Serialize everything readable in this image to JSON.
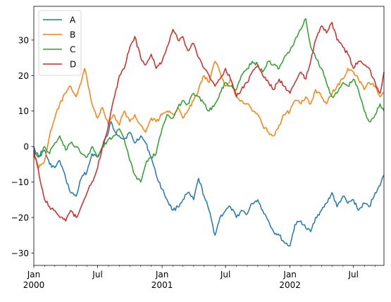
{
  "chart_data": {
    "type": "line",
    "title": "",
    "xlabel": "",
    "ylabel": "",
    "x_range": [
      "2000-01-01",
      "2002-09-26"
    ],
    "ylim": [
      -33.5,
      39.5
    ],
    "yticks": [
      -30,
      -20,
      -10,
      0,
      10,
      20,
      30
    ],
    "xticks_major": [
      {
        "date": "2000-01-01",
        "label": "Jan",
        "sublabel": "2000"
      },
      {
        "date": "2000-07-01",
        "label": "Jul",
        "sublabel": ""
      },
      {
        "date": "2001-01-01",
        "label": "Jan",
        "sublabel": "2001"
      },
      {
        "date": "2001-07-01",
        "label": "Jul",
        "sublabel": ""
      },
      {
        "date": "2002-01-01",
        "label": "Jan",
        "sublabel": "2002"
      },
      {
        "date": "2002-07-01",
        "label": "Jul",
        "sublabel": ""
      }
    ],
    "xticks_minor_monthly": true,
    "grid": false,
    "legend_position": "top-left",
    "series": [
      {
        "name": "A",
        "color": "#1f77b4",
        "points": [
          [
            "2000-01-01",
            0
          ],
          [
            "2000-01-15",
            -3
          ],
          [
            "2000-02-01",
            -1
          ],
          [
            "2000-02-15",
            -5
          ],
          [
            "2000-03-01",
            -6
          ],
          [
            "2000-03-15",
            -4
          ],
          [
            "2000-04-01",
            -9
          ],
          [
            "2000-04-15",
            -13
          ],
          [
            "2000-05-01",
            -14
          ],
          [
            "2000-05-15",
            -9
          ],
          [
            "2000-06-01",
            -7
          ],
          [
            "2000-06-15",
            -2
          ],
          [
            "2000-07-01",
            -3
          ],
          [
            "2000-07-15",
            0
          ],
          [
            "2000-08-01",
            4
          ],
          [
            "2000-08-08",
            7
          ],
          [
            "2000-08-15",
            5
          ],
          [
            "2000-09-01",
            3
          ],
          [
            "2000-09-15",
            2
          ],
          [
            "2000-10-01",
            4
          ],
          [
            "2000-10-15",
            1
          ],
          [
            "2000-11-01",
            3
          ],
          [
            "2000-11-15",
            1
          ],
          [
            "2000-12-01",
            -3
          ],
          [
            "2000-12-15",
            -8
          ],
          [
            "2001-01-01",
            -12
          ],
          [
            "2001-01-15",
            -15
          ],
          [
            "2001-02-01",
            -18
          ],
          [
            "2001-02-15",
            -17
          ],
          [
            "2001-03-01",
            -15
          ],
          [
            "2001-03-15",
            -13
          ],
          [
            "2001-04-01",
            -15
          ],
          [
            "2001-04-15",
            -9
          ],
          [
            "2001-05-01",
            -14
          ],
          [
            "2001-05-15",
            -18
          ],
          [
            "2001-06-01",
            -25
          ],
          [
            "2001-06-15",
            -20
          ],
          [
            "2001-07-01",
            -18
          ],
          [
            "2001-07-15",
            -17
          ],
          [
            "2001-08-01",
            -20
          ],
          [
            "2001-08-15",
            -18
          ],
          [
            "2001-09-01",
            -19
          ],
          [
            "2001-09-15",
            -16
          ],
          [
            "2001-10-01",
            -15
          ],
          [
            "2001-10-15",
            -18
          ],
          [
            "2001-11-01",
            -21
          ],
          [
            "2001-11-15",
            -24
          ],
          [
            "2001-12-01",
            -25
          ],
          [
            "2001-12-15",
            -27
          ],
          [
            "2002-01-01",
            -28
          ],
          [
            "2002-01-15",
            -22
          ],
          [
            "2002-02-01",
            -21
          ],
          [
            "2002-02-15",
            -23
          ],
          [
            "2002-03-01",
            -24
          ],
          [
            "2002-03-15",
            -20
          ],
          [
            "2002-04-01",
            -18
          ],
          [
            "2002-04-15",
            -16
          ],
          [
            "2002-05-01",
            -13
          ],
          [
            "2002-05-15",
            -17
          ],
          [
            "2002-06-01",
            -14
          ],
          [
            "2002-06-15",
            -16
          ],
          [
            "2002-07-01",
            -15
          ],
          [
            "2002-07-15",
            -18
          ],
          [
            "2002-08-01",
            -16
          ],
          [
            "2002-08-15",
            -17
          ],
          [
            "2002-09-01",
            -13
          ],
          [
            "2002-09-15",
            -11
          ],
          [
            "2002-09-26",
            -8
          ]
        ]
      },
      {
        "name": "B",
        "color": "#ff7f0e",
        "points": [
          [
            "2000-01-01",
            -2
          ],
          [
            "2000-01-15",
            -6
          ],
          [
            "2000-02-01",
            -4
          ],
          [
            "2000-02-15",
            3
          ],
          [
            "2000-03-01",
            8
          ],
          [
            "2000-03-15",
            12
          ],
          [
            "2000-04-01",
            15
          ],
          [
            "2000-04-15",
            17
          ],
          [
            "2000-05-01",
            14
          ],
          [
            "2000-05-15",
            18
          ],
          [
            "2000-05-25",
            22
          ],
          [
            "2000-06-01",
            19
          ],
          [
            "2000-06-15",
            12
          ],
          [
            "2000-07-01",
            8
          ],
          [
            "2000-07-15",
            11
          ],
          [
            "2000-08-01",
            6
          ],
          [
            "2000-08-15",
            9
          ],
          [
            "2000-09-01",
            6
          ],
          [
            "2000-09-15",
            10
          ],
          [
            "2000-10-01",
            7
          ],
          [
            "2000-10-15",
            9
          ],
          [
            "2000-11-01",
            6
          ],
          [
            "2000-11-15",
            4
          ],
          [
            "2000-12-01",
            8
          ],
          [
            "2000-12-15",
            7
          ],
          [
            "2001-01-01",
            9
          ],
          [
            "2001-01-15",
            10
          ],
          [
            "2001-02-01",
            9
          ],
          [
            "2001-02-15",
            11
          ],
          [
            "2001-03-01",
            8
          ],
          [
            "2001-03-15",
            10
          ],
          [
            "2001-04-01",
            13
          ],
          [
            "2001-04-15",
            16
          ],
          [
            "2001-05-01",
            20
          ],
          [
            "2001-05-15",
            18
          ],
          [
            "2001-06-01",
            24
          ],
          [
            "2001-06-15",
            21
          ],
          [
            "2001-07-01",
            17
          ],
          [
            "2001-07-15",
            19
          ],
          [
            "2001-08-01",
            14
          ],
          [
            "2001-08-15",
            13
          ],
          [
            "2001-09-01",
            12
          ],
          [
            "2001-09-15",
            10
          ],
          [
            "2001-10-01",
            9
          ],
          [
            "2001-10-15",
            6
          ],
          [
            "2001-11-01",
            4
          ],
          [
            "2001-11-15",
            3
          ],
          [
            "2001-12-01",
            6
          ],
          [
            "2001-12-15",
            9
          ],
          [
            "2002-01-01",
            10
          ],
          [
            "2002-01-15",
            13
          ],
          [
            "2002-02-01",
            12
          ],
          [
            "2002-02-15",
            14
          ],
          [
            "2002-03-01",
            12
          ],
          [
            "2002-03-15",
            16
          ],
          [
            "2002-04-01",
            14
          ],
          [
            "2002-04-15",
            12
          ],
          [
            "2002-05-01",
            15
          ],
          [
            "2002-05-15",
            17
          ],
          [
            "2002-06-01",
            19
          ],
          [
            "2002-06-15",
            22
          ],
          [
            "2002-07-01",
            21
          ],
          [
            "2002-07-15",
            19
          ],
          [
            "2002-08-01",
            16
          ],
          [
            "2002-08-15",
            18
          ],
          [
            "2002-09-01",
            17
          ],
          [
            "2002-09-15",
            14
          ],
          [
            "2002-09-26",
            15
          ]
        ]
      },
      {
        "name": "C",
        "color": "#2ca02c",
        "points": [
          [
            "2000-01-01",
            -1
          ],
          [
            "2000-01-15",
            -3
          ],
          [
            "2000-02-01",
            0
          ],
          [
            "2000-02-15",
            -2
          ],
          [
            "2000-03-01",
            1
          ],
          [
            "2000-03-15",
            3
          ],
          [
            "2000-04-01",
            -1
          ],
          [
            "2000-04-15",
            1
          ],
          [
            "2000-05-01",
            0
          ],
          [
            "2000-05-15",
            -2
          ],
          [
            "2000-06-01",
            -3
          ],
          [
            "2000-06-15",
            0
          ],
          [
            "2000-07-01",
            -3
          ],
          [
            "2000-07-15",
            0
          ],
          [
            "2000-08-01",
            2
          ],
          [
            "2000-08-15",
            3
          ],
          [
            "2000-09-01",
            5
          ],
          [
            "2000-09-15",
            2
          ],
          [
            "2000-10-01",
            -4
          ],
          [
            "2000-10-15",
            -8
          ],
          [
            "2000-11-01",
            -10
          ],
          [
            "2000-11-15",
            -5
          ],
          [
            "2000-12-01",
            -3
          ],
          [
            "2000-12-15",
            -2
          ],
          [
            "2001-01-01",
            5
          ],
          [
            "2001-01-15",
            9
          ],
          [
            "2001-02-01",
            8
          ],
          [
            "2001-02-15",
            11
          ],
          [
            "2001-03-01",
            13
          ],
          [
            "2001-03-15",
            12
          ],
          [
            "2001-04-01",
            15
          ],
          [
            "2001-04-15",
            14
          ],
          [
            "2001-05-01",
            12
          ],
          [
            "2001-05-15",
            10
          ],
          [
            "2001-06-01",
            12
          ],
          [
            "2001-06-15",
            15
          ],
          [
            "2001-07-01",
            18
          ],
          [
            "2001-07-15",
            17
          ],
          [
            "2001-08-01",
            16
          ],
          [
            "2001-08-15",
            20
          ],
          [
            "2001-09-01",
            22
          ],
          [
            "2001-09-15",
            24
          ],
          [
            "2001-10-01",
            23
          ],
          [
            "2001-10-15",
            21
          ],
          [
            "2001-11-01",
            24
          ],
          [
            "2001-11-15",
            23
          ],
          [
            "2001-12-01",
            22
          ],
          [
            "2001-12-15",
            25
          ],
          [
            "2002-01-01",
            27
          ],
          [
            "2002-01-15",
            30
          ],
          [
            "2002-02-01",
            33
          ],
          [
            "2002-02-15",
            36
          ],
          [
            "2002-03-01",
            28
          ],
          [
            "2002-03-15",
            25
          ],
          [
            "2002-04-01",
            22
          ],
          [
            "2002-04-15",
            18
          ],
          [
            "2002-05-01",
            14
          ],
          [
            "2002-05-15",
            15
          ],
          [
            "2002-06-01",
            18
          ],
          [
            "2002-06-15",
            17
          ],
          [
            "2002-07-01",
            19
          ],
          [
            "2002-07-15",
            16
          ],
          [
            "2002-08-01",
            10
          ],
          [
            "2002-08-15",
            7
          ],
          [
            "2002-09-01",
            9
          ],
          [
            "2002-09-15",
            12
          ],
          [
            "2002-09-26",
            10
          ]
        ]
      },
      {
        "name": "D",
        "color": "#d62728",
        "points": [
          [
            "2000-01-01",
            -1
          ],
          [
            "2000-01-10",
            -5
          ],
          [
            "2000-01-20",
            -10
          ],
          [
            "2000-02-01",
            -15
          ],
          [
            "2000-02-15",
            -17
          ],
          [
            "2000-03-01",
            -18
          ],
          [
            "2000-03-15",
            -20
          ],
          [
            "2000-04-01",
            -21
          ],
          [
            "2000-04-15",
            -18
          ],
          [
            "2000-05-01",
            -20
          ],
          [
            "2000-05-15",
            -17
          ],
          [
            "2000-06-01",
            -13
          ],
          [
            "2000-06-15",
            -10
          ],
          [
            "2000-07-01",
            -6
          ],
          [
            "2000-07-15",
            0
          ],
          [
            "2000-08-01",
            6
          ],
          [
            "2000-08-15",
            13
          ],
          [
            "2000-09-01",
            20
          ],
          [
            "2000-09-15",
            22
          ],
          [
            "2000-10-01",
            28
          ],
          [
            "2000-10-15",
            31
          ],
          [
            "2000-11-01",
            25
          ],
          [
            "2000-11-15",
            23
          ],
          [
            "2000-12-01",
            26
          ],
          [
            "2000-12-15",
            22
          ],
          [
            "2001-01-01",
            24
          ],
          [
            "2001-01-15",
            28
          ],
          [
            "2001-02-01",
            33
          ],
          [
            "2001-02-15",
            30
          ],
          [
            "2001-03-01",
            31
          ],
          [
            "2001-03-15",
            27
          ],
          [
            "2001-04-01",
            29
          ],
          [
            "2001-04-15",
            25
          ],
          [
            "2001-05-01",
            22
          ],
          [
            "2001-05-15",
            20
          ],
          [
            "2001-06-01",
            17
          ],
          [
            "2001-06-15",
            19
          ],
          [
            "2001-07-01",
            22
          ],
          [
            "2001-07-15",
            19
          ],
          [
            "2001-08-01",
            14
          ],
          [
            "2001-08-15",
            16
          ],
          [
            "2001-09-01",
            18
          ],
          [
            "2001-09-15",
            21
          ],
          [
            "2001-10-01",
            23
          ],
          [
            "2001-10-15",
            20
          ],
          [
            "2001-11-01",
            18
          ],
          [
            "2001-11-15",
            16
          ],
          [
            "2001-12-01",
            19
          ],
          [
            "2001-12-15",
            17
          ],
          [
            "2002-01-01",
            15
          ],
          [
            "2002-01-15",
            18
          ],
          [
            "2002-02-01",
            21
          ],
          [
            "2002-02-15",
            19
          ],
          [
            "2002-03-01",
            24
          ],
          [
            "2002-03-15",
            30
          ],
          [
            "2002-04-01",
            34
          ],
          [
            "2002-04-15",
            32
          ],
          [
            "2002-05-01",
            35
          ],
          [
            "2002-05-15",
            30
          ],
          [
            "2002-06-01",
            28
          ],
          [
            "2002-06-15",
            26
          ],
          [
            "2002-07-01",
            22
          ],
          [
            "2002-07-15",
            24
          ],
          [
            "2002-08-01",
            23
          ],
          [
            "2002-08-15",
            22
          ],
          [
            "2002-09-01",
            18
          ],
          [
            "2002-09-15",
            15
          ],
          [
            "2002-09-26",
            21
          ]
        ]
      }
    ]
  }
}
